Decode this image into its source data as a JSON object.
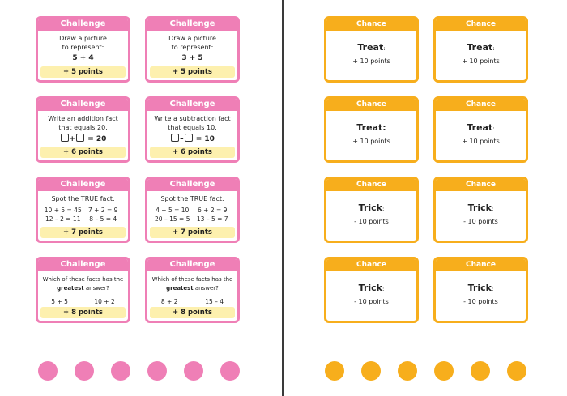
{
  "left_page": {
    "cards": [
      {
        "header": "Challenge",
        "lines": [
          "Draw a picture",
          "to represent:"
        ],
        "expr": "5 + 4",
        "points": "+ 5 points"
      },
      {
        "header": "Challenge",
        "lines": [
          "Draw a picture",
          "to represent:"
        ],
        "expr": "3 + 5",
        "points": "+ 5 points"
      },
      {
        "header": "Challenge",
        "lines": [
          "Write an addition fact",
          "that equals 20."
        ],
        "op": "+",
        "result": "= 20",
        "points": "+ 6 points"
      },
      {
        "header": "Challenge",
        "lines": [
          "Write a subtraction fact",
          "that equals 10."
        ],
        "op": "–",
        "result": "= 10",
        "points": "+ 6 points"
      },
      {
        "header": "Challenge",
        "lines": [
          "Spot the TRUE fact."
        ],
        "facts": [
          "10 + 5 = 45",
          "7 + 2 = 9",
          "12 – 2 = 11",
          "8 – 5 = 4"
        ],
        "points": "+ 7 points"
      },
      {
        "header": "Challenge",
        "lines": [
          "Spot the TRUE fact."
        ],
        "facts": [
          "4 + 5 = 10",
          "6 + 2 = 9",
          "20 – 15 = 5",
          "13 – 5 = 7"
        ],
        "points": "+ 7 points"
      },
      {
        "header": "Challenge",
        "q_a": "Which of these facts has the",
        "q_b": "greatest",
        "q_c": "answer?",
        "facts": [
          "5 + 5",
          "10 + 2"
        ],
        "points": "+ 8 points"
      },
      {
        "header": "Challenge",
        "q_a": "Which of these facts has the",
        "q_b": "greatest",
        "q_c": "answer?",
        "facts": [
          "8 + 2",
          "15 – 4"
        ],
        "points": "+ 8 points"
      }
    ]
  },
  "right_page": {
    "cards": [
      {
        "header": "Chance",
        "word": "Treat",
        "colon": ":",
        "points": "+ 10 points"
      },
      {
        "header": "Chance",
        "word": "Treat",
        "colon": ":",
        "points": "+ 10 points"
      },
      {
        "header": "Chance",
        "word": "Treat:",
        "colon": "",
        "points": "+ 10 points"
      },
      {
        "header": "Chance",
        "word": "Treat",
        "colon": ":",
        "points": "+ 10 points"
      },
      {
        "header": "Chance",
        "word": "Trick",
        "colon": ":",
        "points": "- 10 points"
      },
      {
        "header": "Chance",
        "word": "Trick",
        "colon": ":",
        "points": "- 10 points"
      },
      {
        "header": "Chance",
        "word": "Trick",
        "colon": ":",
        "points": "- 10 points"
      },
      {
        "header": "Chance",
        "word": "Trick",
        "colon": ":",
        "points": "- 10 points"
      }
    ]
  },
  "colors": {
    "challenge": "#ef7fb6",
    "chance": "#f7ae1c",
    "points_bar": "#fdf0ae"
  }
}
